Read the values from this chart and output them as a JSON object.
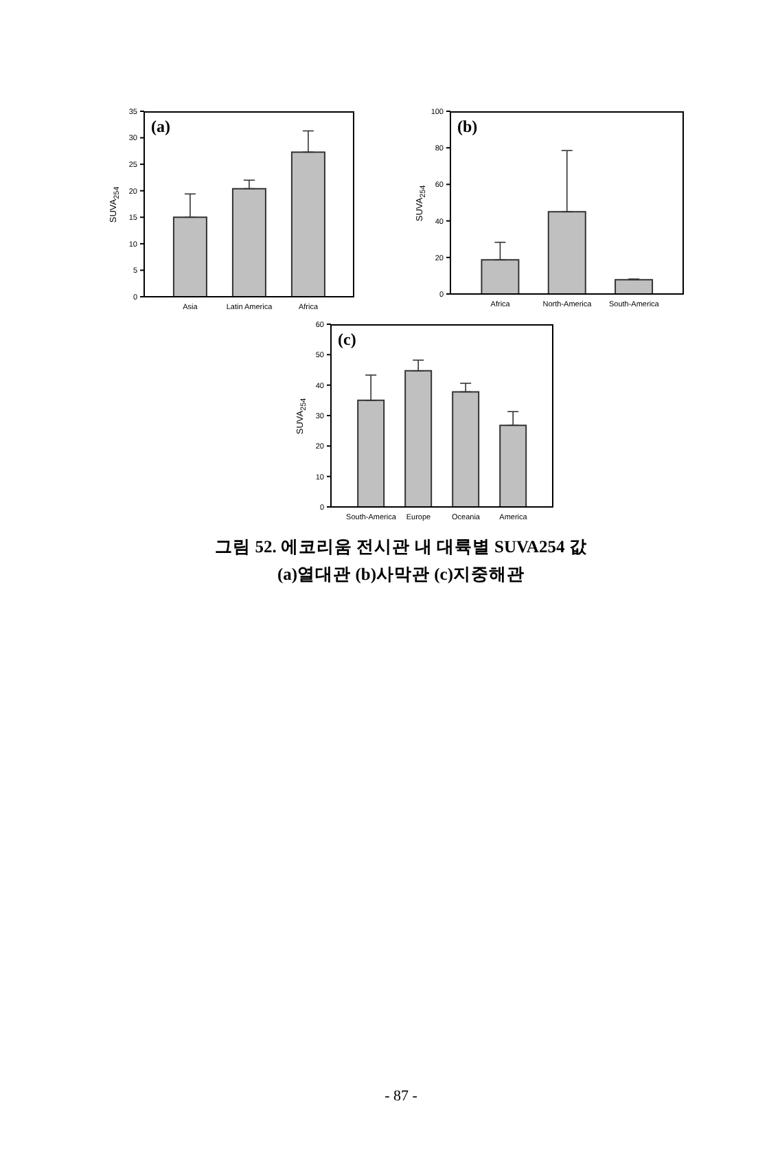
{
  "chart_data": [
    {
      "type": "bar",
      "title": "(a)",
      "ylabel": "SUVA$_{254}$",
      "categories": [
        "Asia",
        "Latin America",
        "Africa"
      ],
      "values": [
        15,
        20.4,
        27.3
      ],
      "errors": [
        [
          15,
          19.4
        ],
        [
          20.4,
          22
        ],
        [
          27.3,
          31.3
        ]
      ],
      "color": "#c0c0c0",
      "ylim": [
        0,
        35
      ],
      "yticks": [
        0,
        5,
        10,
        15,
        20,
        25,
        30,
        35
      ]
    },
    {
      "type": "bar",
      "title": "(b)",
      "ylabel": "SUVA$_{254}$",
      "categories": [
        "Africa",
        "North-America",
        "South-America"
      ],
      "values": [
        18.7,
        45,
        7.8
      ],
      "errors": [
        [
          18.7,
          28.3
        ],
        [
          45,
          78.5
        ],
        [
          7.8,
          8.2
        ]
      ],
      "color": "#c0c0c0",
      "ylim": [
        0,
        100
      ],
      "yticks": [
        0,
        20,
        40,
        60,
        80,
        100
      ]
    },
    {
      "type": "bar",
      "title": "(c)",
      "ylabel": "SUVA$_{254}$",
      "categories": [
        "South-America",
        "Europe",
        "Oceania",
        "America"
      ],
      "values": [
        35,
        44.7,
        37.8,
        26.8
      ],
      "errors": [
        [
          35,
          43.3
        ],
        [
          44.7,
          48.2
        ],
        [
          37.8,
          40.6
        ],
        [
          26.8,
          31.3
        ]
      ],
      "color": "#c0c0c0",
      "ylim": [
        0,
        60
      ],
      "yticks": [
        0,
        10,
        20,
        30,
        40,
        50,
        60
      ],
      "annotations": [
        "그림 52. 에코리움 전시관 내 대륙별 SUVA254 값",
        "(a)열대관 (b)사막관 (c)지중해관",
        "- 87 -"
      ]
    }
  ]
}
